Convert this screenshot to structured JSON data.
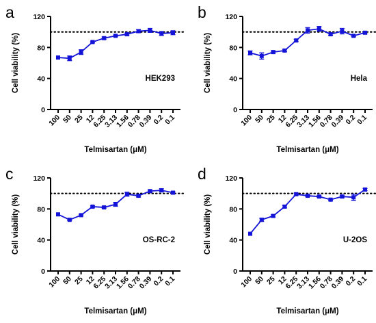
{
  "chart_data": [
    {
      "type": "line",
      "panel_label": "a",
      "annotation": "HEK293",
      "xlabel": "Telmisartan (μM)",
      "ylabel": "Cell viability (%)",
      "categories": [
        "100",
        "50",
        "25",
        "12",
        "6.25",
        "3.13",
        "1.56",
        "0.78",
        "0.39",
        "0.2",
        "0.1"
      ],
      "ylim": [
        0,
        120
      ],
      "yticks": [
        0,
        40,
        80,
        120
      ],
      "reference_line": 100,
      "series": [
        {
          "values": [
            67,
            66,
            74,
            87,
            92,
            95,
            97,
            101,
            102,
            98,
            99
          ],
          "errors": [
            0.5,
            3,
            3,
            1,
            1.5,
            1,
            1.5,
            2,
            2.5,
            2.5,
            2.5
          ]
        }
      ],
      "color": "#1414d8"
    },
    {
      "type": "line",
      "panel_label": "b",
      "annotation": "Hela",
      "xlabel": "Telmisartan (μM)",
      "ylabel": "Cell viability (%)",
      "categories": [
        "100",
        "50",
        "25",
        "12",
        "6.25",
        "3.13",
        "1.56",
        "0.78",
        "0.39",
        "0.2",
        "0.1"
      ],
      "ylim": [
        0,
        120
      ],
      "yticks": [
        0,
        40,
        80,
        120
      ],
      "reference_line": 100,
      "series": [
        {
          "values": [
            73,
            69,
            74,
            76,
            89,
            102,
            104,
            97,
            101,
            95,
            99
          ],
          "errors": [
            2.5,
            4,
            1.5,
            1.5,
            1.5,
            3.5,
            3,
            1.5,
            3.5,
            1,
            1.5
          ]
        }
      ],
      "color": "#1414d8"
    },
    {
      "type": "line",
      "panel_label": "c",
      "annotation": "OS-RC-2",
      "xlabel": "Telmisartan (μM)",
      "ylabel": "Cell viability (%)",
      "categories": [
        "100",
        "50",
        "25",
        "12",
        "6.25",
        "3.13",
        "1.56",
        "0.78",
        "0.39",
        "0.2",
        "0.1"
      ],
      "ylim": [
        0,
        120
      ],
      "yticks": [
        0,
        40,
        80,
        120
      ],
      "reference_line": 100,
      "series": [
        {
          "values": [
            73,
            66,
            72,
            83,
            82,
            86,
            99,
            97,
            103,
            104,
            101
          ],
          "errors": [
            0.5,
            1,
            1,
            1,
            1,
            2.5,
            2.5,
            1.5,
            1.5,
            2,
            1
          ]
        }
      ],
      "color": "#1414d8"
    },
    {
      "type": "line",
      "panel_label": "d",
      "annotation": "U-2OS",
      "xlabel": "Telmisartan (μM)",
      "ylabel": "Cell viability (%)",
      "categories": [
        "100",
        "50",
        "25",
        "12",
        "6.25",
        "3.13",
        "1.56",
        "0.78",
        "0.39",
        "0.2",
        "0.1"
      ],
      "ylim": [
        0,
        120
      ],
      "yticks": [
        0,
        40,
        80,
        120
      ],
      "reference_line": 100,
      "series": [
        {
          "values": [
            48,
            66,
            71,
            83,
            99,
            97,
            96,
            92,
            96,
            95,
            105
          ],
          "errors": [
            0.5,
            2,
            1.5,
            1.5,
            1.5,
            1,
            1,
            1,
            1.5,
            4,
            1.5
          ]
        }
      ],
      "color": "#1414d8"
    }
  ]
}
